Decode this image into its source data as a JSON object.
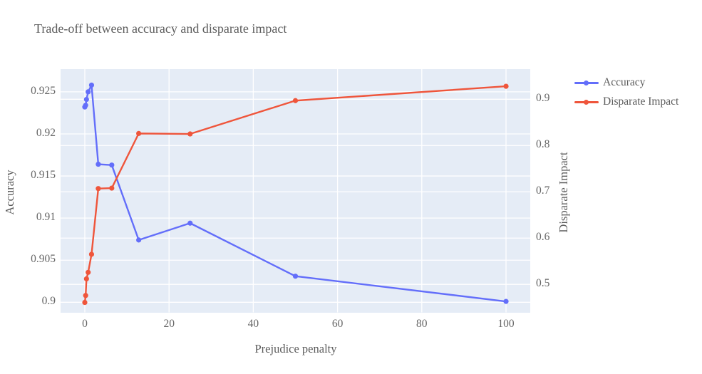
{
  "chart_data": {
    "type": "line",
    "title": "Trade-off between accuracy and disparate impact",
    "xlabel": "Prejudice penalty",
    "x": [
      0,
      0.2,
      0.4,
      0.8,
      1.6,
      3.2,
      6.4,
      12.8,
      25,
      50,
      100
    ],
    "series": [
      {
        "name": "Accuracy",
        "axis": "left",
        "color": "#636EFA",
        "values": [
          0.9232,
          0.9234,
          0.9241,
          0.925,
          0.9258,
          0.9164,
          0.9163,
          0.9074,
          0.9094,
          0.9031,
          0.9001
        ]
      },
      {
        "name": "Disparate Impact",
        "axis": "right",
        "color": "#EF553B",
        "values": [
          0.461,
          0.476,
          0.512,
          0.526,
          0.565,
          0.707,
          0.708,
          0.826,
          0.825,
          0.897,
          0.928
        ]
      }
    ],
    "xaxis": {
      "ticks": [
        0,
        20,
        40,
        60,
        80,
        100
      ],
      "range": [
        -5.75,
        105.75
      ],
      "grid": true
    },
    "yaxis_left": {
      "label": "Accuracy",
      "ticks": [
        0.9,
        0.905,
        0.91,
        0.915,
        0.92,
        0.925
      ],
      "range": [
        0.8988,
        0.9277
      ],
      "grid": true
    },
    "yaxis_right": {
      "label": "Disparate Impact",
      "ticks": [
        0.5,
        0.6,
        0.7,
        0.8,
        0.9
      ],
      "range": [
        0.4395,
        0.9651
      ],
      "grid": true
    },
    "legend": {
      "position": "top-right-outside",
      "entries": [
        "Accuracy",
        "Disparate Impact"
      ]
    },
    "colors": {
      "plot_background": "#E5ECF6",
      "gridline": "#FFFFFF",
      "accuracy_series": "#636EFA",
      "disparate_impact_series": "#EF553B",
      "text": "#5C5C5C"
    }
  }
}
